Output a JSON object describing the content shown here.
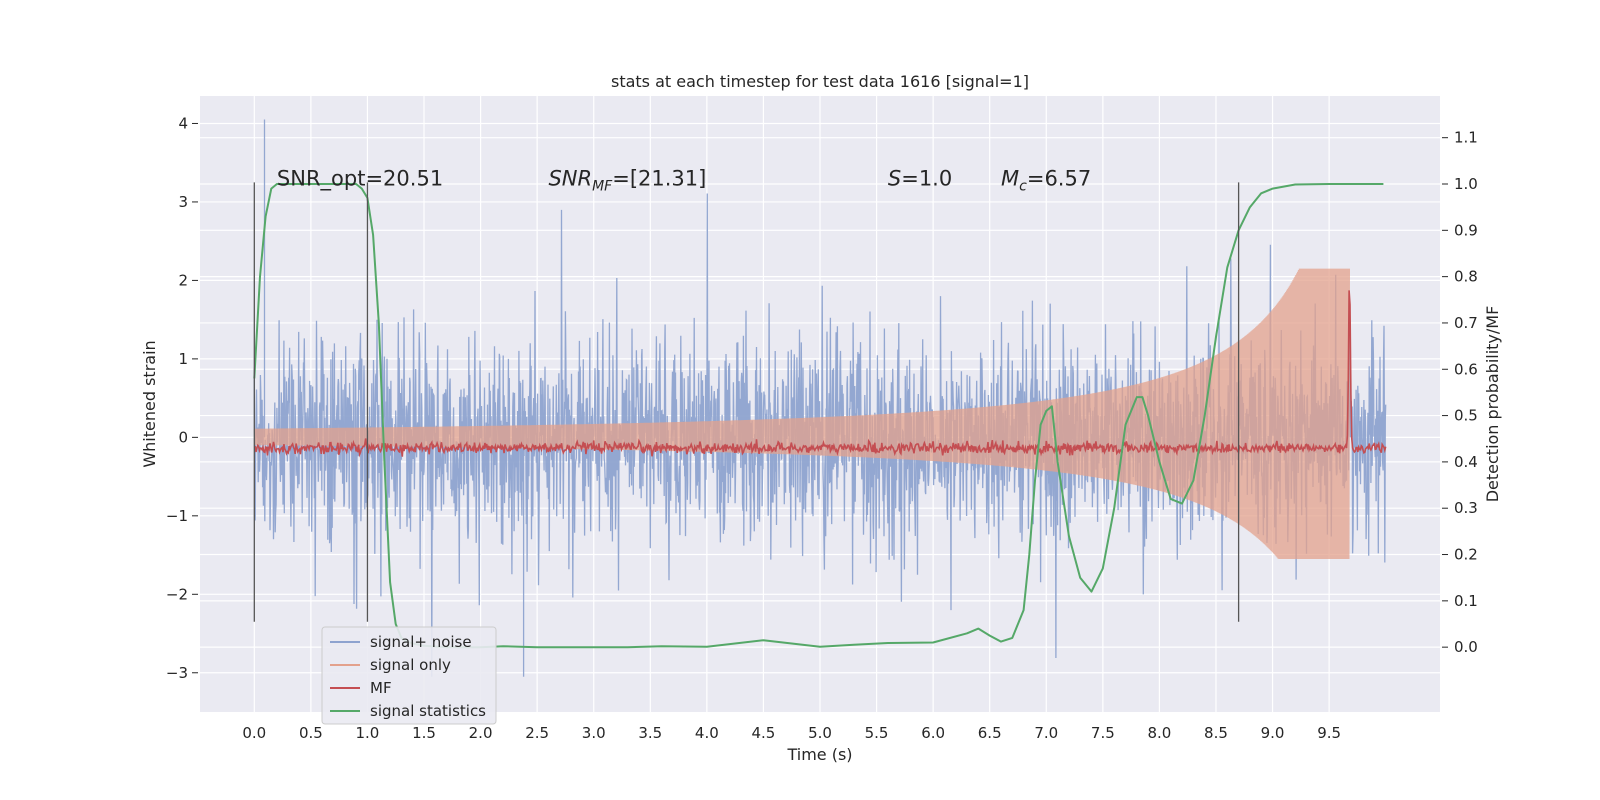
{
  "chart_data": {
    "type": "line",
    "title": "stats at each timestep for test data 1616 [signal=1]",
    "xlabel": "Time (s)",
    "ylabel": "Whitened strain",
    "y2label": "Detection probability/MF",
    "xlim": [
      -0.48,
      10.48
    ],
    "ylim": [
      -3.5,
      4.35
    ],
    "y2lim": [
      -0.14,
      1.19
    ],
    "x_ticks": [
      "0.0",
      "0.5",
      "1.0",
      "1.5",
      "2.0",
      "2.5",
      "3.0",
      "3.5",
      "4.0",
      "4.5",
      "5.0",
      "5.5",
      "6.0",
      "6.5",
      "7.0",
      "7.5",
      "8.0",
      "8.5",
      "9.0",
      "9.5"
    ],
    "y_ticks": [
      "4",
      "3",
      "2",
      "1",
      "0",
      "−1",
      "−2",
      "−3"
    ],
    "y2_ticks": [
      "1.1",
      "1.0",
      "0.9",
      "0.8",
      "0.7",
      "0.6",
      "0.5",
      "0.4",
      "0.3",
      "0.2",
      "0.1",
      "0.0"
    ],
    "grid": true,
    "legend_position": "lower-left",
    "annotations": [
      {
        "text": "SNR_opt=20.51",
        "x": 0.2,
        "y": 3.3
      },
      {
        "prefix": "SNR",
        "sub": "MF",
        "suffix": "=[21.31]",
        "x": 2.6,
        "y": 3.3
      },
      {
        "prefix": "S",
        "sub": "",
        "suffix": "=1.0",
        "x": 5.6,
        "y": 3.3
      },
      {
        "prefix": "M",
        "sub": "c",
        "suffix": "=6.57",
        "x": 6.6,
        "y": 3.3
      }
    ],
    "vertical_lines": [
      {
        "x": 0.0,
        "y_from": -2.35,
        "y_to": 3.25
      },
      {
        "x": 1.0,
        "y_from": -2.35,
        "y_to": 3.25
      },
      {
        "x": 8.7,
        "y_from": -2.35,
        "y_to": 3.25
      }
    ],
    "series": [
      {
        "name": "signal+ noise",
        "color": "#8ea3cf",
        "kind": "noise",
        "x_range": [
          0.0,
          10.0
        ],
        "typical_amplitude": 1.55,
        "max": 4.05,
        "min": -3.05
      },
      {
        "name": "signal only",
        "color": "#e3a18c",
        "kind": "chirp",
        "x_range": [
          0.0,
          9.68
        ],
        "peak_x": 9.68,
        "peak_y": 2.15,
        "min_y": -1.55
      },
      {
        "name": "MF",
        "color": "#c44e52",
        "kind": "mf",
        "axis": "y2",
        "baseline": 0.43,
        "peak_x": 9.68,
        "peak": 0.8
      },
      {
        "name": "signal statistics",
        "color": "#55a868",
        "kind": "line",
        "axis": "y2",
        "x": [
          0.0,
          0.05,
          0.1,
          0.15,
          0.2,
          0.3,
          0.5,
          0.7,
          0.9,
          0.95,
          1.0,
          1.05,
          1.1,
          1.15,
          1.2,
          1.25,
          1.3,
          1.35,
          1.4,
          1.5,
          1.7,
          2.0,
          2.2,
          2.5,
          3.0,
          3.3,
          3.6,
          4.0,
          4.5,
          5.0,
          5.3,
          5.6,
          6.0,
          6.3,
          6.4,
          6.5,
          6.6,
          6.7,
          6.8,
          6.85,
          6.9,
          6.95,
          7.0,
          7.05,
          7.1,
          7.2,
          7.3,
          7.4,
          7.5,
          7.6,
          7.7,
          7.8,
          7.85,
          7.9,
          8.0,
          8.1,
          8.2,
          8.3,
          8.4,
          8.5,
          8.6,
          8.7,
          8.8,
          8.9,
          9.0,
          9.2,
          9.5,
          9.7,
          9.98
        ],
        "y": [
          0.58,
          0.8,
          0.93,
          0.99,
          1.0,
          1.0,
          1.0,
          1.0,
          1.0,
          0.99,
          0.97,
          0.89,
          0.7,
          0.4,
          0.14,
          0.05,
          0.02,
          0.012,
          0.008,
          0.003,
          0.0,
          0.0,
          0.002,
          0.0,
          0.0,
          0.0,
          0.002,
          0.001,
          0.015,
          0.001,
          0.005,
          0.009,
          0.01,
          0.03,
          0.04,
          0.025,
          0.012,
          0.02,
          0.08,
          0.2,
          0.36,
          0.48,
          0.51,
          0.52,
          0.4,
          0.24,
          0.15,
          0.12,
          0.17,
          0.3,
          0.48,
          0.54,
          0.54,
          0.5,
          0.4,
          0.32,
          0.31,
          0.36,
          0.5,
          0.67,
          0.82,
          0.9,
          0.95,
          0.98,
          0.99,
          0.999,
          1.0,
          1.0,
          1.0
        ]
      }
    ]
  }
}
